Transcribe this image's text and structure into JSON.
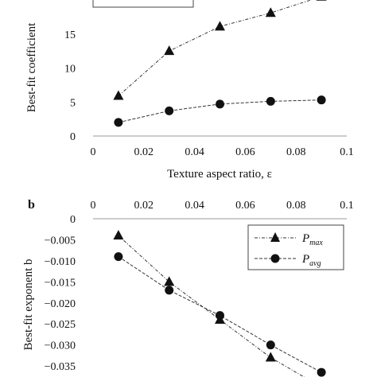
{
  "chart_data": [
    {
      "type": "line",
      "panel": "",
      "xlabel": "Texture aspect ratio, ε",
      "ylabel": "Best-fit coefficient",
      "xlim": [
        0,
        0.1
      ],
      "ylim": [
        0,
        20
      ],
      "xticks": [
        "0",
        "0.02",
        "0.04",
        "0.06",
        "0.08",
        "0.1"
      ],
      "yticks": [
        "0",
        "5",
        "10",
        "15"
      ],
      "series": [
        {
          "name": "",
          "marker": "triangle",
          "x": [
            0.01,
            0.03,
            0.05,
            0.07,
            0.09
          ],
          "y": [
            5.9,
            12.5,
            16.1,
            18.1,
            20.5
          ]
        },
        {
          "name": "",
          "marker": "circle",
          "x": [
            0.01,
            0.03,
            0.05,
            0.07,
            0.09
          ],
          "y": [
            2.0,
            3.7,
            4.7,
            5.1,
            5.3
          ]
        }
      ],
      "legend": "top-left",
      "grid": false
    },
    {
      "type": "line",
      "panel": "b",
      "xlabel": "",
      "ylabel": "Best-fit exponent b",
      "xaxis_position": "top",
      "xlim": [
        0,
        0.1
      ],
      "ylim": [
        -0.038,
        0
      ],
      "xticks": [
        "0",
        "0.02",
        "0.04",
        "0.06",
        "0.08",
        "0.1"
      ],
      "yticks": [
        "0",
        "−0.005",
        "−0.010",
        "−0.015",
        "−0.020",
        "−0.025",
        "−0.030",
        "−0.035"
      ],
      "series": [
        {
          "name": "P",
          "subscript": "max",
          "marker": "triangle",
          "x": [
            0.01,
            0.03,
            0.05,
            0.07,
            0.09
          ],
          "y": [
            -0.004,
            -0.015,
            -0.024,
            -0.033,
            -0.04
          ]
        },
        {
          "name": "P",
          "subscript": "avg",
          "marker": "circle",
          "x": [
            0.01,
            0.03,
            0.05,
            0.07,
            0.09
          ],
          "y": [
            -0.009,
            -0.017,
            -0.023,
            -0.03,
            -0.0365
          ]
        }
      ],
      "legend": "top-right",
      "grid": false
    }
  ]
}
